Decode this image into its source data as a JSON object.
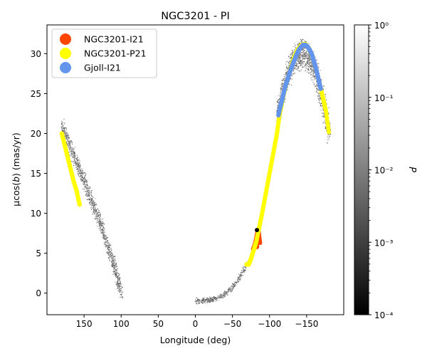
{
  "chart_data": {
    "type": "scatter",
    "title": "NGC3201 - PI",
    "xlabel": "Longitude (deg)",
    "ylabel_prefix": "μcos(",
    "ylabel_var": "b",
    "ylabel_suffix": ") (mas/yr)",
    "xlim": [
      200,
      -200
    ],
    "ylim": [
      -2.7,
      33.6
    ],
    "xticks": [
      150,
      100,
      50,
      0,
      -50,
      -100,
      -150
    ],
    "xtick_labels": [
      "150",
      "100",
      "50",
      "0",
      "−50",
      "−100",
      "−150"
    ],
    "yticks": [
      0,
      5,
      10,
      15,
      20,
      25,
      30
    ],
    "yticks_labels": [
      "0",
      "5",
      "10",
      "15",
      "20",
      "25",
      "30"
    ],
    "legend_position": "top-left",
    "series": [
      {
        "name": "NGC3201-I21",
        "color": "#ff4500",
        "points": [
          [
            -78,
            5.5
          ],
          [
            -80,
            6.0
          ],
          [
            -82,
            6.6
          ],
          [
            -83,
            7.2
          ],
          [
            -84,
            7.7
          ],
          [
            -85,
            7.2
          ],
          [
            -86,
            6.7
          ],
          [
            -87,
            6.3
          ],
          [
            -85,
            7.9
          ],
          [
            -81,
            6.4
          ],
          [
            -83,
            5.8
          ]
        ]
      },
      {
        "name": "NGC3201-P21",
        "color": "#ffff00",
        "points": [
          [
            -69,
            3.6
          ],
          [
            -72,
            3.6
          ],
          [
            -75,
            4.3
          ],
          [
            -78,
            5.2
          ],
          [
            -82,
            6.4
          ],
          [
            -86,
            8.2
          ],
          [
            -90,
            10.0
          ],
          [
            -94,
            12.0
          ],
          [
            -98,
            14.0
          ],
          [
            -102,
            16.0
          ],
          [
            -106,
            18.0
          ],
          [
            -110,
            20.0
          ],
          [
            -113,
            22.0
          ],
          [
            -118,
            24.4
          ],
          [
            -123,
            26.4
          ],
          [
            -128,
            28.0
          ],
          [
            -133,
            29.5
          ],
          [
            -138,
            30.5
          ],
          [
            -143,
            31.1
          ],
          [
            -148,
            31.2
          ],
          [
            -153,
            30.7
          ],
          [
            -158,
            29.6
          ],
          [
            -163,
            28.0
          ],
          [
            -168,
            26.0
          ],
          [
            -172,
            24.5
          ],
          [
            -176,
            22.8
          ],
          [
            -180,
            20.2
          ],
          [
            180,
            20.0
          ],
          [
            176,
            18.5
          ],
          [
            172,
            17.0
          ],
          [
            168,
            15.5
          ],
          [
            164,
            14.0
          ],
          [
            160,
            12.8
          ],
          [
            156,
            11.1
          ]
        ]
      },
      {
        "name": "Gjoll-I21",
        "color": "#6495ed",
        "points": [
          [
            -112,
            22.3
          ],
          [
            -115,
            23.5
          ],
          [
            -118,
            24.6
          ],
          [
            -121,
            25.8
          ],
          [
            -124,
            26.7
          ],
          [
            -127,
            27.6
          ],
          [
            -130,
            28.4
          ],
          [
            -133,
            29.1
          ],
          [
            -136,
            29.8
          ],
          [
            -139,
            30.4
          ],
          [
            -142,
            30.8
          ],
          [
            -145,
            31.1
          ],
          [
            -148,
            31.1
          ],
          [
            -151,
            30.9
          ],
          [
            -154,
            30.5
          ],
          [
            -157,
            29.9
          ],
          [
            -160,
            29.0
          ],
          [
            -163,
            28.0
          ],
          [
            -166,
            26.8
          ],
          [
            -169,
            25.6
          ]
        ]
      }
    ],
    "marker": {
      "x": -83,
      "y": 7.9,
      "color": "#000000"
    },
    "colorbar": {
      "label": "P",
      "scale": "log",
      "range": [
        0.0001,
        1
      ],
      "ticks": [
        "10⁰",
        "10⁻¹",
        "10⁻²",
        "10⁻³",
        "10⁻⁴"
      ],
      "tick_values": [
        1,
        0.1,
        0.01,
        0.001,
        0.0001
      ],
      "colors": [
        "#000000",
        "#ffffff"
      ]
    }
  }
}
